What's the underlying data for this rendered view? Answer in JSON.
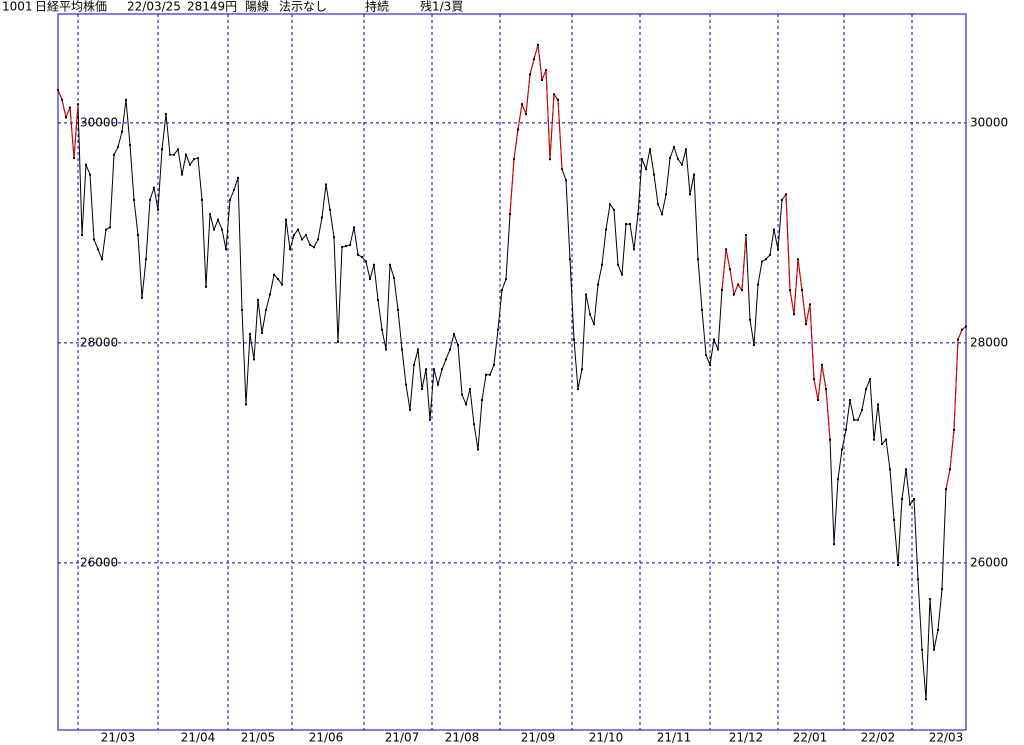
{
  "header": [
    "1001",
    "日経平均株価",
    "22/03/25",
    "28149円",
    "陽線",
    "法示なし",
    "持続",
    "残1/3買"
  ],
  "chart_data": {
    "type": "line",
    "color": "#000000",
    "highlight_color": "#e00000",
    "highlight_ranges": [
      [
        0,
        5
      ],
      [
        113,
        126
      ],
      [
        166,
        172
      ],
      [
        181,
        193
      ],
      [
        222,
        227
      ]
    ],
    "values": [
      30300,
      30210,
      30050,
      30140,
      29680,
      30170,
      28980,
      29620,
      29530,
      28940,
      28850,
      28760,
      29030,
      29050,
      29710,
      29780,
      29920,
      30210,
      29800,
      29300,
      28980,
      28410,
      28760,
      29300,
      29410,
      29210,
      29760,
      30080,
      29710,
      29710,
      29760,
      29530,
      29710,
      29620,
      29670,
      29680,
      29300,
      28510,
      29170,
      29030,
      29120,
      29030,
      28850,
      29300,
      29390,
      29500,
      28300,
      27440,
      28080,
      27850,
      28390,
      28090,
      28300,
      28440,
      28620,
      28580,
      28530,
      29120,
      28850,
      28980,
      29030,
      28940,
      28980,
      28890,
      28870,
      28940,
      29140,
      29440,
      29210,
      28960,
      28010,
      28870,
      28880,
      28890,
      29050,
      28800,
      28780,
      28740,
      28580,
      28710,
      28390,
      28120,
      27940,
      28710,
      28590,
      28300,
      27940,
      27620,
      27390,
      27800,
      27940,
      27580,
      27760,
      27300,
      27760,
      27620,
      27760,
      27850,
      27940,
      28080,
      27980,
      27530,
      27440,
      27580,
      27260,
      27030,
      27480,
      27710,
      27710,
      27800,
      28120,
      28480,
      28580,
      29170,
      29670,
      29940,
      30170,
      30080,
      30440,
      30580,
      30710,
      30390,
      30480,
      29670,
      30260,
      30210,
      29580,
      29480,
      28760,
      28030,
      27580,
      27760,
      28440,
      28260,
      28170,
      28530,
      28710,
      29030,
      29260,
      29210,
      28710,
      28620,
      29080,
      29080,
      28850,
      29170,
      29670,
      29580,
      29760,
      29530,
      29260,
      29170,
      29350,
      29680,
      29780,
      29670,
      29620,
      29760,
      29350,
      29530,
      28760,
      28300,
      27890,
      27800,
      28030,
      27940,
      28480,
      28850,
      28670,
      28440,
      28530,
      28480,
      28980,
      28210,
      27980,
      28530,
      28740,
      28760,
      28800,
      29030,
      28850,
      29300,
      29350,
      28480,
      28260,
      28760,
      28480,
      28170,
      28350,
      27670,
      27480,
      27800,
      27580,
      27120,
      26170,
      26760,
      27030,
      27210,
      27480,
      27300,
      27300,
      27390,
      27580,
      27670,
      27120,
      27440,
      27080,
      27120,
      26850,
      26390,
      25980,
      26580,
      26850,
      26530,
      26580,
      25850,
      25210,
      24760,
      25670,
      25210,
      25390,
      25760,
      26670,
      26850,
      27210,
      28030,
      28120,
      28149
    ],
    "xticks": [
      {
        "value": 15,
        "label": "21/03"
      },
      {
        "value": 35,
        "label": "21/04"
      },
      {
        "value": 50,
        "label": "21/05"
      },
      {
        "value": 67,
        "label": "21/06"
      },
      {
        "value": 86,
        "label": "21/07"
      },
      {
        "value": 101,
        "label": "21/08"
      },
      {
        "value": 120,
        "label": "21/09"
      },
      {
        "value": 137,
        "label": "21/10"
      },
      {
        "value": 154,
        "label": "21/11"
      },
      {
        "value": 172,
        "label": "21/12"
      },
      {
        "value": 188,
        "label": "22/01"
      },
      {
        "value": 205,
        "label": "22/02"
      },
      {
        "value": 222,
        "label": "22/03"
      }
    ],
    "ylim": [
      24480,
      30990
    ],
    "yticks": [
      26000,
      28000,
      30000
    ],
    "grid": true,
    "grid_color": "#0000c0"
  }
}
